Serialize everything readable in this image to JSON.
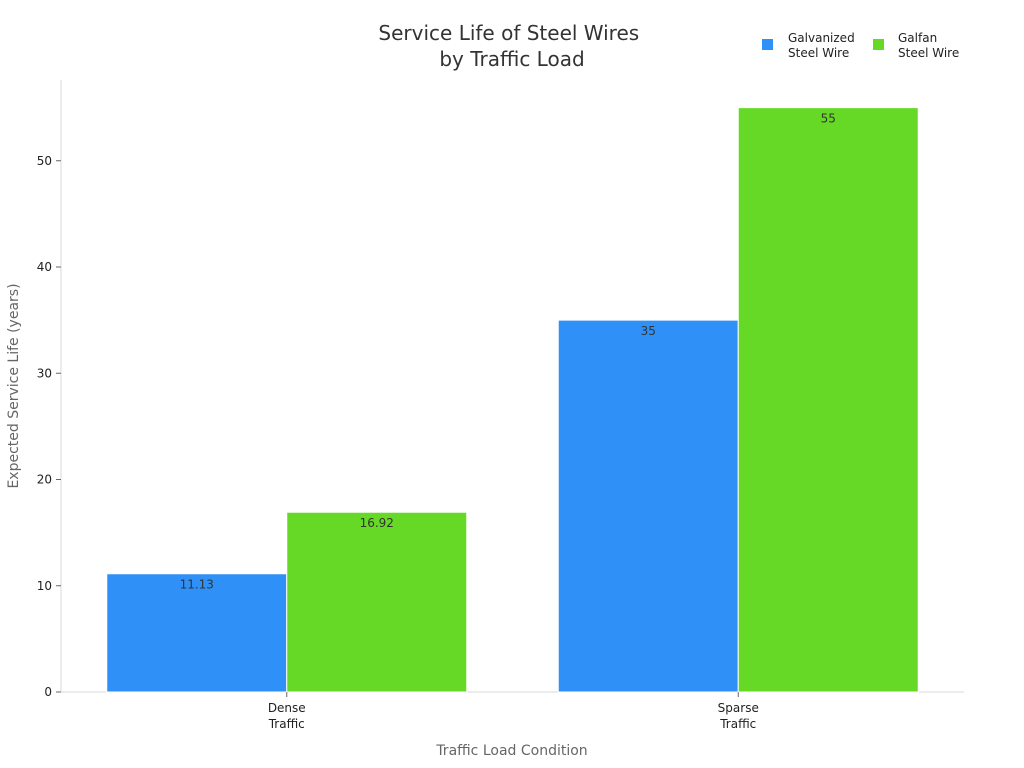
{
  "chart_data": {
    "type": "bar",
    "title": [
      "Service Life of Steel Wires",
      "by Traffic Load"
    ],
    "xlabel": "Traffic Load Condition",
    "ylabel": "Expected Service Life (years)",
    "categories": [
      [
        "Dense",
        "Traffic"
      ],
      [
        "Sparse",
        "Traffic"
      ]
    ],
    "series": [
      {
        "name": [
          "Galvanized",
          "Steel Wire"
        ],
        "color": "#2f91f7",
        "values": [
          11.13,
          35
        ]
      },
      {
        "name": [
          "Galfan",
          "Steel Wire"
        ],
        "color": "#66d926",
        "values": [
          16.92,
          55
        ]
      }
    ],
    "ylim": [
      0,
      57.6
    ],
    "yticks": [
      0,
      10,
      20,
      30,
      40,
      50
    ],
    "grid": false,
    "legend_position": "top-right"
  }
}
